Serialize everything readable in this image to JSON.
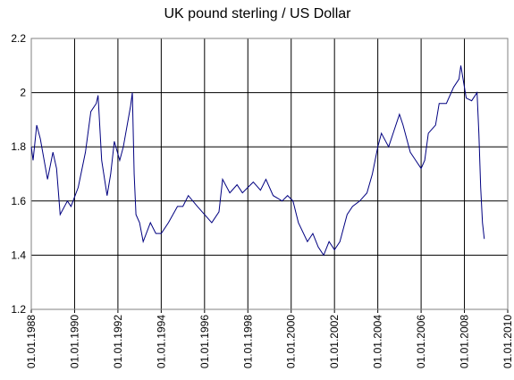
{
  "chart_data": {
    "type": "line",
    "title": "UK pound sterling / US Dollar",
    "x": [
      "1988-01",
      "1988-02",
      "1988-04",
      "1988-06",
      "1988-10",
      "1989-01",
      "1989-03",
      "1989-05",
      "1989-09",
      "1989-11",
      "1990-03",
      "1990-07",
      "1990-10",
      "1991-01",
      "1991-02",
      "1991-04",
      "1991-07",
      "1991-09",
      "1991-11",
      "1992-02",
      "1992-04",
      "1992-08",
      "1992-09",
      "1992-10",
      "1992-11",
      "1993-01",
      "1993-03",
      "1993-07",
      "1993-10",
      "1994-01",
      "1994-05",
      "1994-10",
      "1995-01",
      "1995-04",
      "1995-09",
      "1996-01",
      "1996-05",
      "1996-09",
      "1996-11",
      "1997-03",
      "1997-07",
      "1997-10",
      "1998-01",
      "1998-04",
      "1998-08",
      "1998-11",
      "1999-03",
      "1999-08",
      "1999-11",
      "2000-02",
      "2000-05",
      "2000-10",
      "2001-01",
      "2001-04",
      "2001-07",
      "2001-10",
      "2002-01",
      "2002-04",
      "2002-08",
      "2002-11",
      "2003-03",
      "2003-07",
      "2003-10",
      "2004-01",
      "2004-03",
      "2004-07",
      "2004-10",
      "2005-01",
      "2005-03",
      "2005-07",
      "2005-10",
      "2006-01",
      "2006-03",
      "2006-05",
      "2006-09",
      "2006-11",
      "2007-03",
      "2007-07",
      "2007-10",
      "2007-11",
      "2008-02",
      "2008-05",
      "2008-08",
      "2008-09",
      "2008-10",
      "2008-11",
      "2008-12"
    ],
    "series": [
      {
        "name": "GBP/USD",
        "color": "#000080",
        "values": [
          1.8,
          1.75,
          1.88,
          1.83,
          1.68,
          1.78,
          1.72,
          1.55,
          1.6,
          1.58,
          1.65,
          1.78,
          1.93,
          1.96,
          1.99,
          1.75,
          1.62,
          1.7,
          1.82,
          1.75,
          1.8,
          1.95,
          2.0,
          1.7,
          1.55,
          1.52,
          1.45,
          1.52,
          1.48,
          1.48,
          1.52,
          1.58,
          1.58,
          1.62,
          1.58,
          1.55,
          1.52,
          1.56,
          1.68,
          1.63,
          1.66,
          1.63,
          1.65,
          1.67,
          1.64,
          1.68,
          1.62,
          1.6,
          1.62,
          1.6,
          1.52,
          1.45,
          1.48,
          1.43,
          1.4,
          1.45,
          1.42,
          1.45,
          1.55,
          1.58,
          1.6,
          1.63,
          1.7,
          1.8,
          1.85,
          1.8,
          1.86,
          1.92,
          1.88,
          1.78,
          1.75,
          1.72,
          1.75,
          1.85,
          1.88,
          1.96,
          1.96,
          2.02,
          2.05,
          2.1,
          1.98,
          1.97,
          2.0,
          1.85,
          1.65,
          1.52,
          1.46
        ]
      }
    ],
    "xlim": [
      "1988-01-01",
      "2010-01-01"
    ],
    "xticks": [
      {
        "value": "1988-01-01",
        "label": "01.01.1988"
      },
      {
        "value": "1990-01-01",
        "label": "01.01.1990"
      },
      {
        "value": "1992-01-01",
        "label": "01.01.1992"
      },
      {
        "value": "1994-01-01",
        "label": "01.01.1994"
      },
      {
        "value": "1996-01-01",
        "label": "01.01.1996"
      },
      {
        "value": "1998-01-01",
        "label": "01.01.1998"
      },
      {
        "value": "2000-01-01",
        "label": "01.01.2000"
      },
      {
        "value": "2002-01-01",
        "label": "01.01.2002"
      },
      {
        "value": "2004-01-01",
        "label": "01.01.2004"
      },
      {
        "value": "2006-01-01",
        "label": "01.01.2006"
      },
      {
        "value": "2008-01-01",
        "label": "01.01.2008"
      },
      {
        "value": "2010-01-01",
        "label": "01.01.2010"
      }
    ],
    "ylim": [
      1.2,
      2.2
    ],
    "yticks": [
      1.2,
      1.4,
      1.6,
      1.8,
      2,
      2.2
    ],
    "grid": true
  }
}
